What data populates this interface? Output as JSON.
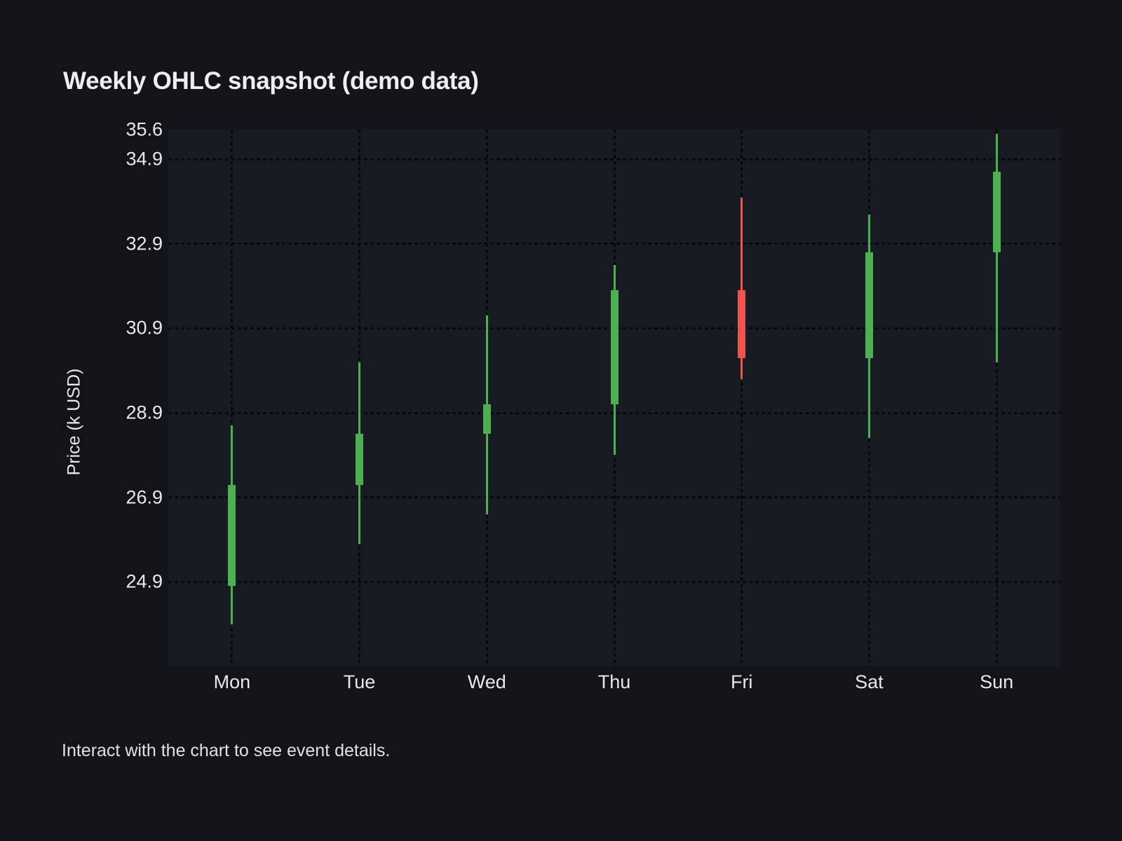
{
  "page": {
    "title": "Weekly OHLC snapshot (demo data)",
    "caption": "Interact with the chart to see event details."
  },
  "chart_data": {
    "type": "candlestick",
    "title": "Weekly OHLC snapshot (demo data)",
    "xlabel": "",
    "ylabel": "Price (k USD)",
    "legend": "none",
    "grid": "dotted",
    "categories": [
      "Mon",
      "Tue",
      "Wed",
      "Thu",
      "Fri",
      "Sat",
      "Sun"
    ],
    "series": [
      {
        "name": "Weekly OHLC",
        "points": [
          {
            "day": "Mon",
            "open": 24.8,
            "high": 28.6,
            "low": 23.9,
            "close": 27.2,
            "direction": "up"
          },
          {
            "day": "Tue",
            "open": 27.2,
            "high": 30.1,
            "low": 25.8,
            "close": 28.4,
            "direction": "up"
          },
          {
            "day": "Wed",
            "open": 28.4,
            "high": 31.2,
            "low": 26.5,
            "close": 29.1,
            "direction": "up"
          },
          {
            "day": "Thu",
            "open": 29.1,
            "high": 32.4,
            "low": 27.9,
            "close": 31.8,
            "direction": "up"
          },
          {
            "day": "Fri",
            "open": 31.8,
            "high": 34.0,
            "low": 29.7,
            "close": 30.2,
            "direction": "down"
          },
          {
            "day": "Sat",
            "open": 30.2,
            "high": 33.6,
            "low": 28.3,
            "close": 32.7,
            "direction": "up"
          },
          {
            "day": "Sun",
            "open": 32.7,
            "high": 35.5,
            "low": 30.1,
            "close": 34.6,
            "direction": "up"
          }
        ]
      }
    ],
    "ylim": [
      22.9,
      35.6
    ],
    "y_ticks": [
      {
        "label": "35.6",
        "value": 35.6,
        "gridline": false
      },
      {
        "label": "34.9",
        "value": 34.9,
        "gridline": true
      },
      {
        "label": "32.9",
        "value": 32.9,
        "gridline": true
      },
      {
        "label": "30.9",
        "value": 30.9,
        "gridline": true
      },
      {
        "label": "28.9",
        "value": 28.9,
        "gridline": true
      },
      {
        "label": "26.9",
        "value": 26.9,
        "gridline": true
      },
      {
        "label": "24.9",
        "value": 24.9,
        "gridline": true
      }
    ],
    "colors": {
      "up": "#4caf50",
      "down": "#ef5350",
      "grid": "#08090c",
      "plot_background": "#181b21",
      "page_background": "#12141a",
      "text": "#e6e8eb"
    }
  }
}
